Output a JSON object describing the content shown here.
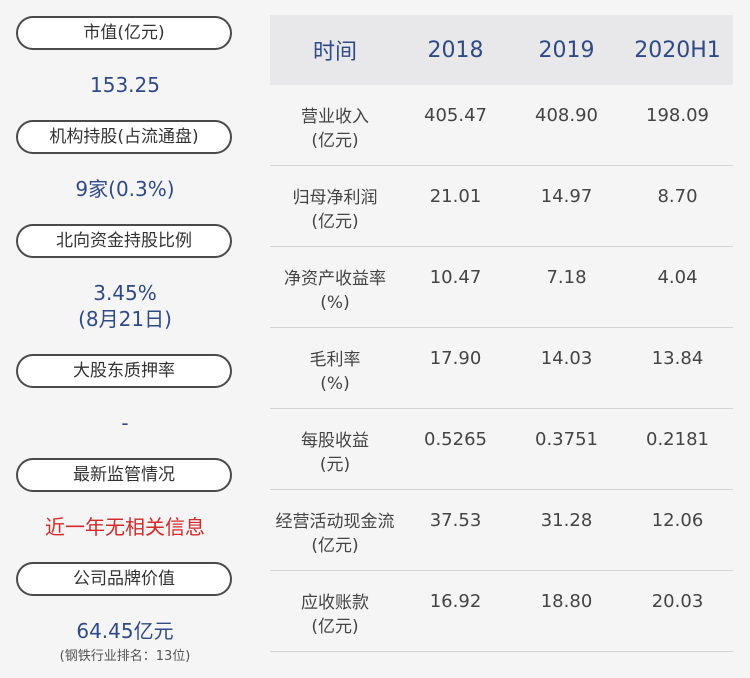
{
  "left": {
    "market_cap": {
      "label": "市值(亿元)",
      "value": "153.25"
    },
    "institution": {
      "label": "机构持股(占流通盘)",
      "value": "9家(0.3%)"
    },
    "northbound": {
      "label": "北向资金持股比例",
      "value": "3.45%",
      "date": "(8月21日)"
    },
    "pledge": {
      "label": "大股东质押率",
      "value": "-"
    },
    "supervision": {
      "label": "最新监管情况",
      "value": "近一年无相关信息"
    },
    "brand": {
      "label": "公司品牌价值",
      "value": "64.45亿元",
      "note": "(钢铁行业排名：13位)"
    }
  },
  "table": {
    "headers": [
      "时间",
      "2018",
      "2019",
      "2020H1"
    ],
    "rows": [
      {
        "label1": "营业收入",
        "label2": "(亿元)",
        "v": [
          "405.47",
          "408.90",
          "198.09"
        ]
      },
      {
        "label1": "归母净利润",
        "label2": "(亿元)",
        "v": [
          "21.01",
          "14.97",
          "8.70"
        ]
      },
      {
        "label1": "净资产收益率",
        "label2": "(%)",
        "v": [
          "10.47",
          "7.18",
          "4.04"
        ]
      },
      {
        "label1": "毛利率",
        "label2": "(%)",
        "v": [
          "17.90",
          "14.03",
          "13.84"
        ]
      },
      {
        "label1": "每股收益",
        "label2": "(元)",
        "v": [
          "0.5265",
          "0.3751",
          "0.2181"
        ]
      },
      {
        "label1": "经营活动现金流",
        "label2": "(亿元)",
        "v": [
          "37.53",
          "31.28",
          "12.06"
        ]
      },
      {
        "label1": "应收账款",
        "label2": "(亿元)",
        "v": [
          "16.92",
          "18.80",
          "20.03"
        ]
      }
    ]
  }
}
